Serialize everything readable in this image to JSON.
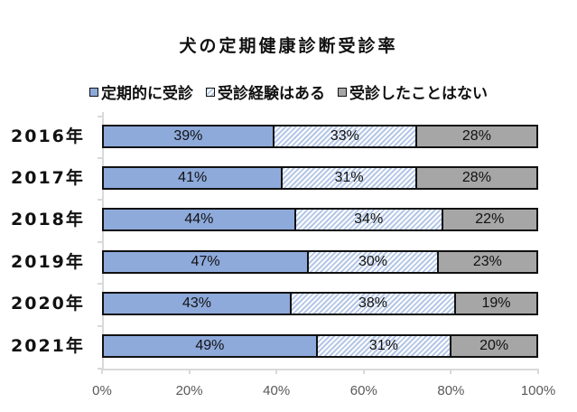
{
  "chart_data": {
    "type": "bar",
    "orientation": "horizontal",
    "stacked": "percent",
    "title": "犬の定期健康診断受診率",
    "categories": [
      "2016年",
      "2017年",
      "2018年",
      "2019年",
      "2020年",
      "2021年"
    ],
    "series": [
      {
        "name": "定期的に受診",
        "color": "#8eaadb",
        "pattern": "solid",
        "values": [
          39,
          41,
          44,
          47,
          43,
          49
        ]
      },
      {
        "name": "受診経験はある",
        "color": "#b4c7e7",
        "pattern": "diagonal-hatch",
        "values": [
          33,
          31,
          34,
          30,
          38,
          31
        ]
      },
      {
        "name": "受診したことはない",
        "color": "#a6a6a6",
        "pattern": "solid",
        "values": [
          28,
          28,
          22,
          23,
          19,
          20
        ]
      }
    ],
    "xlabel": "",
    "ylabel": "",
    "xlim": [
      0,
      100
    ],
    "xticks": [
      "0%",
      "20%",
      "40%",
      "60%",
      "80%",
      "100%"
    ],
    "legend_position": "top",
    "grid": false,
    "data_labels": true
  },
  "title": "犬の定期健康診断受診率",
  "legend": [
    {
      "label": "定期的に受診"
    },
    {
      "label": "受診経験はある"
    },
    {
      "label": "受診したことはない"
    }
  ],
  "rows": [
    {
      "year": "2016年",
      "labels": [
        "39%",
        "33%",
        "28%"
      ]
    },
    {
      "year": "2017年",
      "labels": [
        "41%",
        "31%",
        "28%"
      ]
    },
    {
      "year": "2018年",
      "labels": [
        "44%",
        "34%",
        "22%"
      ]
    },
    {
      "year": "2019年",
      "labels": [
        "47%",
        "30%",
        "23%"
      ]
    },
    {
      "year": "2020年",
      "labels": [
        "43%",
        "38%",
        "19%"
      ]
    },
    {
      "year": "2021年",
      "labels": [
        "49%",
        "31%",
        "20%"
      ]
    }
  ],
  "xaxis": {
    "ticks": [
      "0%",
      "20%",
      "40%",
      "60%",
      "80%",
      "100%"
    ]
  }
}
